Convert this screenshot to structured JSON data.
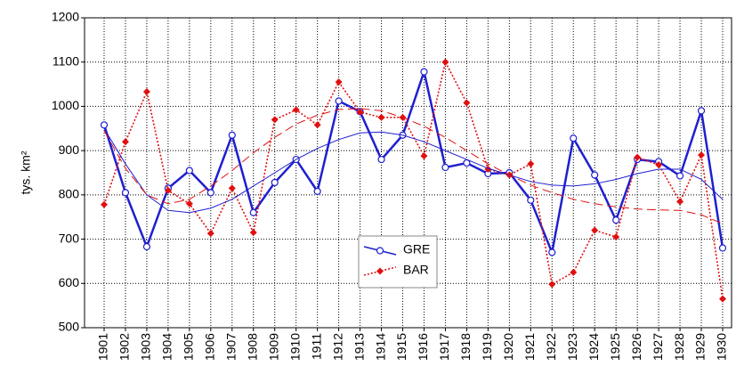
{
  "chart_data": {
    "type": "line",
    "y_label": "tys. km²",
    "categories": [
      "1901",
      "1902",
      "1903",
      "1904",
      "1905",
      "1906",
      "1907",
      "1908",
      "1909",
      "1910",
      "1911",
      "1912",
      "1913",
      "1914",
      "1915",
      "1916",
      "1917",
      "1918",
      "1919",
      "1920",
      "1921",
      "1922",
      "1923",
      "1924",
      "1925",
      "1926",
      "1927",
      "1928",
      "1929",
      "1930"
    ],
    "series": [
      {
        "name": "GRE",
        "color": "#1f1fd0",
        "style": "solid",
        "marker": "circle",
        "values": [
          958,
          805,
          683,
          815,
          855,
          805,
          935,
          760,
          828,
          880,
          808,
          1012,
          988,
          880,
          935,
          1078,
          862,
          872,
          848,
          850,
          788,
          670,
          928,
          845,
          743,
          880,
          875,
          843,
          990,
          680
        ]
      },
      {
        "name": "BAR",
        "color": "#e01010",
        "style": "dotted",
        "marker": "diamond",
        "values": [
          778,
          920,
          1033,
          810,
          780,
          713,
          815,
          715,
          970,
          992,
          958,
          1055,
          987,
          975,
          975,
          888,
          1100,
          1008,
          858,
          845,
          870,
          598,
          625,
          720,
          705,
          885,
          868,
          785,
          890,
          565
        ]
      },
      {
        "color": "#1f1fd0",
        "style": "thin",
        "values": [
          950,
          870,
          800,
          765,
          760,
          770,
          790,
          820,
          850,
          880,
          905,
          925,
          940,
          942,
          935,
          920,
          900,
          880,
          860,
          845,
          830,
          822,
          820,
          825,
          835,
          848,
          858,
          858,
          835,
          790
        ]
      },
      {
        "color": "#e01010",
        "style": "dashed",
        "values": [
          945,
          860,
          800,
          780,
          790,
          820,
          855,
          895,
          930,
          960,
          980,
          993,
          995,
          990,
          975,
          955,
          930,
          900,
          870,
          845,
          822,
          805,
          790,
          780,
          773,
          768,
          766,
          765,
          755,
          735
        ]
      }
    ],
    "ylim": [
      500,
      1200
    ],
    "yticks": [
      500,
      600,
      700,
      800,
      900,
      1000,
      1100,
      1200
    ],
    "grid": true
  }
}
